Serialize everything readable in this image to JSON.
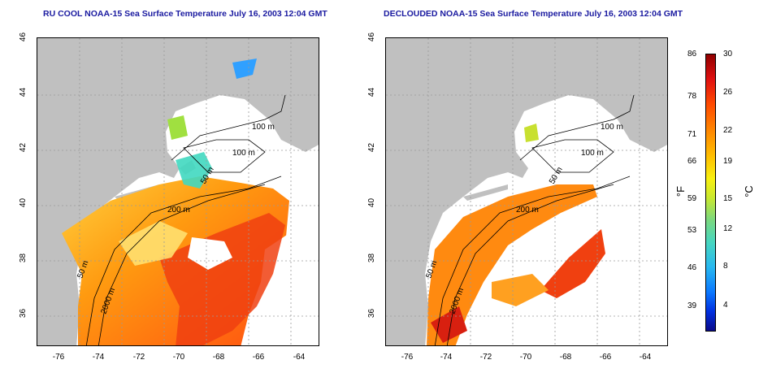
{
  "titles": {
    "left": "RU COOL NOAA-15 Sea Surface Temperature July 16, 2003 12:04 GMT",
    "right": "DECLOUDED NOAA-15 Sea Surface Temperature July 16, 2003 12:04 GMT"
  },
  "axes": {
    "lat_ticks": [
      "46",
      "44",
      "42",
      "40",
      "38",
      "36"
    ],
    "lon_ticks": [
      "-76",
      "-74",
      "-72",
      "-70",
      "-68",
      "-66",
      "-64"
    ]
  },
  "contour_labels": {
    "left": [
      "100 m",
      "100 m",
      "50 m",
      "200 m",
      "50 m",
      "2000 m"
    ],
    "right": [
      "100 m",
      "100 m",
      "50 m",
      "200 m",
      "50 m",
      "2000 m"
    ]
  },
  "colorbar": {
    "fahrenheit_ticks": [
      "86",
      "78",
      "71",
      "66",
      "59",
      "53",
      "46",
      "39"
    ],
    "celsius_ticks": [
      "30",
      "26",
      "22",
      "19",
      "15",
      "12",
      "8",
      "4"
    ],
    "unit_f": "°F",
    "unit_c": "°C"
  },
  "colors": {
    "land": "#c0c0c0",
    "ocean_cloud": "#ffffff",
    "grid": "#9a9a9a",
    "title": "#1a1aa0"
  }
}
